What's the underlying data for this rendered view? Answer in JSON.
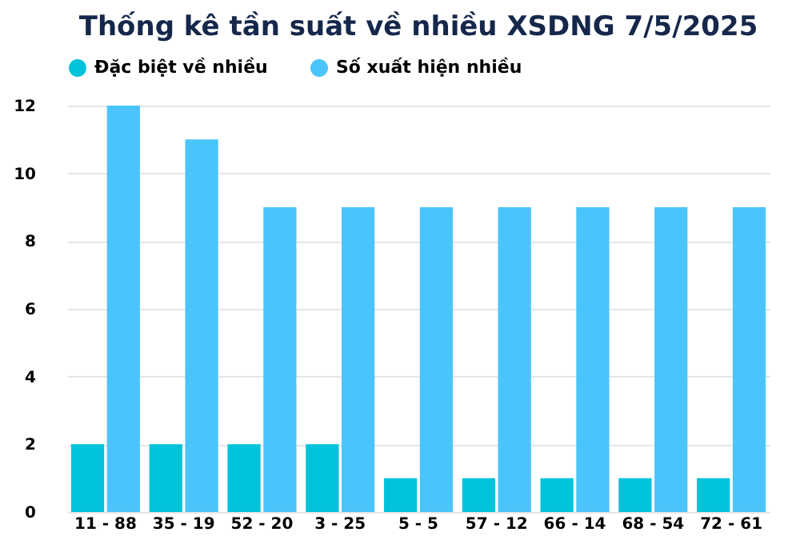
{
  "chart_data": {
    "type": "bar",
    "title": "Thống kê tần suất về nhiều XSDNG 7/5/2025",
    "categories": [
      "11 - 88",
      "35 - 19",
      "52 - 20",
      "3 - 25",
      "5 - 5",
      "57 - 12",
      "66 - 14",
      "68 - 54",
      "72 - 61"
    ],
    "series": [
      {
        "name": "Đặc biệt về nhiều",
        "color": "#00c3d9",
        "values": [
          2,
          2,
          2,
          2,
          1,
          1,
          1,
          1,
          1
        ]
      },
      {
        "name": "Số xuất hiện nhiều",
        "color": "#4bc4fb",
        "values": [
          12,
          11,
          9,
          9,
          9,
          9,
          9,
          9,
          9
        ]
      }
    ],
    "ylim": [
      0,
      12
    ],
    "yticks": [
      0,
      2,
      4,
      6,
      8,
      10,
      12
    ],
    "grid": "y",
    "legend": "top"
  }
}
